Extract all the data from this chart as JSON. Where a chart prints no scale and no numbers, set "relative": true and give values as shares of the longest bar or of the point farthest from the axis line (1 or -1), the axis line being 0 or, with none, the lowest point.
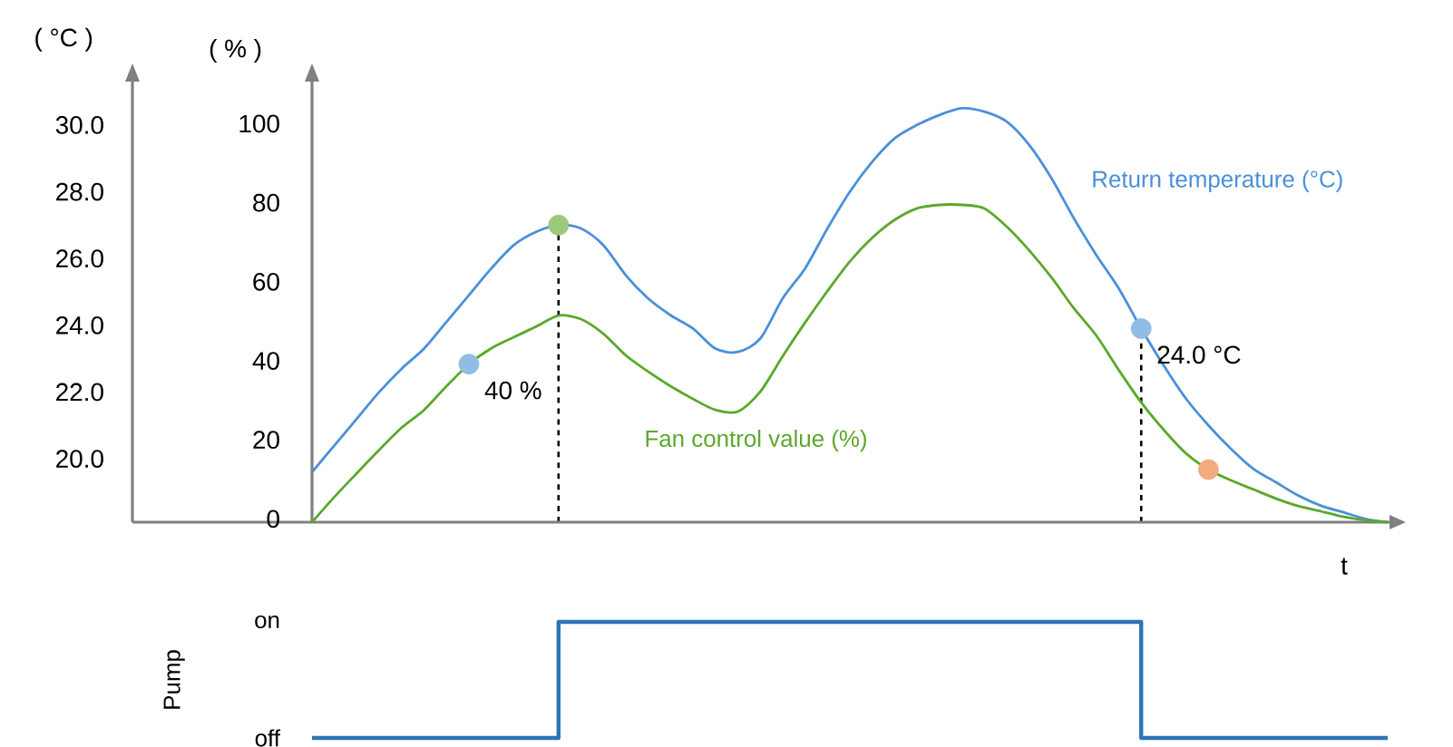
{
  "chart_data": [
    {
      "type": "line",
      "xlabel": "t",
      "ylabel": "( °C )",
      "y2label": "( % )",
      "categories": [
        null,
        null,
        null,
        null,
        null,
        null,
        null,
        null,
        null,
        null,
        null,
        null,
        null,
        null,
        null,
        null,
        null,
        null,
        null,
        null,
        null,
        null,
        null,
        null,
        null,
        null,
        null,
        null,
        null,
        null,
        null,
        null,
        null,
        null,
        null,
        null,
        null,
        null,
        null,
        null,
        null,
        null,
        null,
        null,
        null,
        null,
        null,
        null,
        null
      ],
      "ylim": [
        18.2,
        31.4
      ],
      "yticks": [
        {
          "value": 20,
          "label": "20.0"
        },
        {
          "value": 22,
          "label": "22.0"
        },
        {
          "value": 24,
          "label": "24.0"
        },
        {
          "value": 26,
          "label": "26.0"
        },
        {
          "value": 28,
          "label": "28.0"
        },
        {
          "value": 30,
          "label": "30.0"
        }
      ],
      "y2lim": [
        0,
        111.5
      ],
      "y2ticks": [
        0,
        20,
        40,
        60,
        80,
        100
      ],
      "series": [
        {
          "name": "Return temperature (°C)",
          "type": "line",
          "axis": "y",
          "color": "#4a90d9",
          "values": [
            19.7,
            20.5,
            21.3,
            22.1,
            22.8,
            23.4,
            24.2,
            25.0,
            25.8,
            26.5,
            26.9,
            27.1,
            27.0,
            26.5,
            25.6,
            24.9,
            24.4,
            24.0,
            23.4,
            23.3,
            23.7,
            24.9,
            25.8,
            27.0,
            28.1,
            29.0,
            29.7,
            30.1,
            30.4,
            30.6,
            30.5,
            30.2,
            29.5,
            28.5,
            27.3,
            26.2,
            25.2,
            24.0,
            22.9,
            21.9,
            21.1,
            20.4,
            19.8,
            19.4,
            19.0,
            18.7,
            18.5,
            18.3,
            18.2
          ]
        },
        {
          "name": "Fan control value (%)",
          "type": "line",
          "axis": "y2",
          "color": "#5ba82c",
          "values": [
            0,
            6.4,
            12.4,
            18.3,
            23.9,
            28.4,
            34.4,
            40,
            44.0,
            46.8,
            49.5,
            52.3,
            51.4,
            47.7,
            42.2,
            38.1,
            34.4,
            31.2,
            28.4,
            28.0,
            33.0,
            42.0,
            50.5,
            58.5,
            66.0,
            72.0,
            76.5,
            79.4,
            80.3,
            80.3,
            79.4,
            74.8,
            68.8,
            61.9,
            54.1,
            47.2,
            38.5,
            30.3,
            23.4,
            17.4,
            13.3,
            10.6,
            8.3,
            6.0,
            4.1,
            2.8,
            1.4,
            0.5,
            0
          ]
        },
        {
          "type": "scatter",
          "axis": "y2",
          "color": "#8fbde3",
          "values": [
            null,
            null,
            null,
            null,
            null,
            null,
            null,
            40,
            null,
            null,
            null,
            null,
            null,
            null,
            null,
            null,
            null,
            null,
            null,
            null,
            null,
            null,
            null,
            null,
            null,
            null,
            null,
            null,
            null,
            null,
            null,
            null,
            null,
            null,
            null,
            null,
            null,
            null,
            null,
            null,
            null,
            null,
            null,
            null,
            null,
            null,
            null,
            null,
            null
          ],
          "value_labels": [
            null,
            null,
            null,
            null,
            null,
            null,
            null,
            "40 %",
            null,
            null,
            null,
            null,
            null,
            null,
            null,
            null,
            null,
            null,
            null,
            null,
            null,
            null,
            null,
            null,
            null,
            null,
            null,
            null,
            null,
            null,
            null,
            null,
            null,
            null,
            null,
            null,
            null,
            null,
            null,
            null,
            null,
            null,
            null,
            null,
            null,
            null,
            null,
            null,
            null
          ]
        },
        {
          "type": "scatter",
          "axis": "y",
          "color": "#9cc97a",
          "values": [
            null,
            null,
            null,
            null,
            null,
            null,
            null,
            null,
            null,
            null,
            null,
            27.1,
            null,
            null,
            null,
            null,
            null,
            null,
            null,
            null,
            null,
            null,
            null,
            null,
            null,
            null,
            null,
            null,
            null,
            null,
            null,
            null,
            null,
            null,
            null,
            null,
            null,
            null,
            null,
            null,
            null,
            null,
            null,
            null,
            null,
            null,
            null,
            null,
            null
          ]
        },
        {
          "type": "scatter",
          "axis": "y",
          "color": "#8fbde3",
          "values": [
            null,
            null,
            null,
            null,
            null,
            null,
            null,
            null,
            null,
            null,
            null,
            null,
            null,
            null,
            null,
            null,
            null,
            null,
            null,
            null,
            null,
            null,
            null,
            null,
            null,
            null,
            null,
            null,
            null,
            null,
            null,
            null,
            null,
            null,
            null,
            null,
            null,
            24.0,
            null,
            null,
            null,
            null,
            null,
            null,
            null,
            null,
            null,
            null,
            null
          ],
          "value_labels": [
            null,
            null,
            null,
            null,
            null,
            null,
            null,
            null,
            null,
            null,
            null,
            null,
            null,
            null,
            null,
            null,
            null,
            null,
            null,
            null,
            null,
            null,
            null,
            null,
            null,
            null,
            null,
            null,
            null,
            null,
            null,
            null,
            null,
            null,
            null,
            null,
            null,
            "24.0 °C",
            null,
            null,
            null,
            null,
            null,
            null,
            null,
            null,
            null,
            null,
            null
          ]
        },
        {
          "type": "scatter",
          "axis": "y2",
          "color": "#f2aa7f",
          "values": [
            null,
            null,
            null,
            null,
            null,
            null,
            null,
            null,
            null,
            null,
            null,
            null,
            null,
            null,
            null,
            null,
            null,
            null,
            null,
            null,
            null,
            null,
            null,
            null,
            null,
            null,
            null,
            null,
            null,
            null,
            null,
            null,
            null,
            null,
            null,
            null,
            null,
            null,
            null,
            null,
            13.3,
            null,
            null,
            null,
            null,
            null,
            null,
            null,
            null
          ]
        }
      ]
    },
    {
      "type": "step",
      "ylabel": "Pump",
      "color": "#2e75b6",
      "categories": [
        null,
        null,
        null,
        null,
        null,
        null,
        null,
        null,
        null,
        null,
        null,
        null,
        null,
        null,
        null,
        null,
        null,
        null,
        null,
        null,
        null,
        null,
        null,
        null,
        null,
        null,
        null,
        null,
        null,
        null,
        null,
        null,
        null,
        null,
        null,
        null,
        null,
        null,
        null,
        null,
        null,
        null,
        null,
        null,
        null,
        null,
        null,
        null,
        null
      ],
      "relative": true,
      "annotations": [
        "on",
        "off"
      ],
      "values": [
        0,
        0,
        0,
        0,
        0,
        0,
        0,
        0,
        0,
        0,
        0,
        1,
        1,
        1,
        1,
        1,
        1,
        1,
        1,
        1,
        1,
        1,
        1,
        1,
        1,
        1,
        1,
        1,
        1,
        1,
        1,
        1,
        1,
        1,
        1,
        1,
        1,
        0,
        0,
        0,
        0,
        0,
        0,
        0,
        0,
        0,
        0,
        0,
        0
      ]
    }
  ]
}
